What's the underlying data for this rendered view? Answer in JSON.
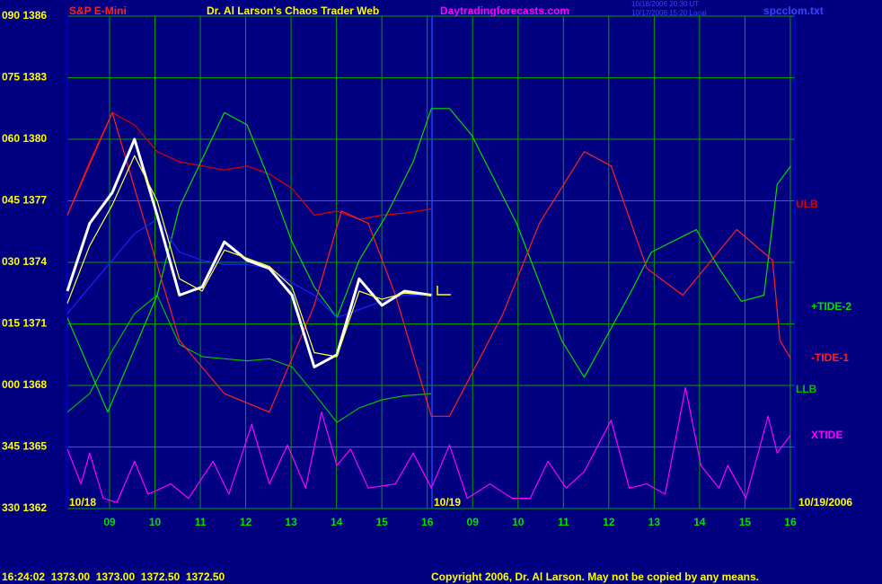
{
  "chart_data": {
    "type": "line",
    "title": "Dr. Al Larson's Chaos Trader Web",
    "subtitle": "S&P E-Mini",
    "source": "Daytradingforecasts.com",
    "file": "spcclom.txt",
    "timestamps": [
      "10/18/2006 20:30 UT",
      "10/17/2006 15:20 Local"
    ],
    "annotations": [
      "10/18",
      "10/19",
      "10/19/2006"
    ],
    "status": "16:24:02  1373.00  1373.00  1372.50  1372.50",
    "copyright": "Copyright 2006, Dr. Al Larson. May not be copied by any means.",
    "xlim": [
      0.07,
      16.1
    ],
    "ylim": [
      1362,
      1386
    ],
    "xticks": [
      {
        "value": 1,
        "label": "09"
      },
      {
        "value": 2,
        "label": "10"
      },
      {
        "value": 3,
        "label": "11"
      },
      {
        "value": 4,
        "label": "12"
      },
      {
        "value": 5,
        "label": "13"
      },
      {
        "value": 6,
        "label": "14"
      },
      {
        "value": 7,
        "label": "15"
      },
      {
        "value": 8,
        "label": "16"
      },
      {
        "value": 9,
        "label": "09"
      },
      {
        "value": 10,
        "label": "10"
      },
      {
        "value": 11,
        "label": "11"
      },
      {
        "value": 12,
        "label": "12"
      },
      {
        "value": 13,
        "label": "13"
      },
      {
        "value": 14,
        "label": "14"
      },
      {
        "value": 15,
        "label": "15"
      },
      {
        "value": 16,
        "label": "16"
      }
    ],
    "yticks": [
      {
        "value": 1386,
        "label": "090 1386"
      },
      {
        "value": 1383,
        "label": "075 1383"
      },
      {
        "value": 1380,
        "label": "060 1380"
      },
      {
        "value": 1377,
        "label": "045 1377"
      },
      {
        "value": 1374,
        "label": "030 1374"
      },
      {
        "value": 1371,
        "label": "015 1371"
      },
      {
        "value": 1368,
        "label": "000 1368"
      },
      {
        "value": 1365,
        "label": "345 1365"
      },
      {
        "value": 1362,
        "label": "330 1362"
      }
    ],
    "grid": true,
    "series": [
      {
        "name": "ULB",
        "color": "#e00000",
        "x": [
          0.07,
          0.56,
          1.06,
          1.55,
          2.05,
          2.54,
          3.04,
          3.53,
          4.03,
          4.52,
          5.02,
          5.51,
          6.01,
          6.5,
          7.0,
          7.5,
          8.09
        ],
        "values": [
          1376.3,
          1378.9,
          1381.3,
          1380.7,
          1379.4,
          1378.9,
          1378.7,
          1378.5,
          1378.7,
          1378.3,
          1377.6,
          1376.3,
          1376.5,
          1376.1,
          1376.3,
          1376.4,
          1376.6
        ]
      },
      {
        "name": "LLB",
        "color": "#00c000",
        "x": [
          0.07,
          0.56,
          1.06,
          1.55,
          2.05,
          2.54,
          3.04,
          3.53,
          4.03,
          4.52,
          5.02,
          5.51,
          6.01,
          6.5,
          7.0,
          7.5,
          8.09
        ],
        "values": [
          1366.7,
          1367.6,
          1369.7,
          1371.5,
          1372.4,
          1370.0,
          1369.4,
          1369.3,
          1369.2,
          1369.3,
          1368.9,
          1367.6,
          1366.2,
          1366.9,
          1367.3,
          1367.5,
          1367.6
        ]
      },
      {
        "name": "+TIDE-2",
        "color": "#00e000",
        "x": [
          0.07,
          0.96,
          2.05,
          2.54,
          3.53,
          4.03,
          4.52,
          5.02,
          5.51,
          6.01,
          6.5,
          7.1,
          7.69,
          8.09,
          8.49,
          8.98,
          9.97,
          10.96,
          11.46,
          12.45,
          12.94,
          13.93,
          14.43,
          14.92,
          15.42,
          15.71,
          16.01
        ],
        "values": [
          1371.3,
          1366.7,
          1372.4,
          1376.7,
          1381.3,
          1380.7,
          1378.0,
          1375.0,
          1372.8,
          1371.3,
          1374.1,
          1376.3,
          1378.9,
          1381.5,
          1381.5,
          1380.2,
          1375.9,
          1370.2,
          1368.4,
          1372.4,
          1374.5,
          1375.6,
          1373.7,
          1372.1,
          1372.4,
          1377.8,
          1378.7
        ]
      },
      {
        "name": "-TIDE-1",
        "color": "#ff2020",
        "x": [
          0.07,
          1.06,
          2.54,
          3.53,
          4.52,
          5.51,
          6.11,
          6.7,
          7.3,
          8.09,
          8.49,
          9.67,
          10.47,
          11.46,
          12.05,
          12.84,
          13.63,
          14.82,
          15.61,
          15.77,
          16.01
        ],
        "values": [
          1376.3,
          1381.3,
          1370.2,
          1367.6,
          1366.7,
          1371.9,
          1376.5,
          1375.9,
          1372.4,
          1366.5,
          1366.5,
          1371.5,
          1375.9,
          1379.4,
          1378.7,
          1373.7,
          1372.4,
          1375.6,
          1374.1,
          1370.2,
          1369.3
        ]
      },
      {
        "name": "XTIDE",
        "color": "#ff00ff",
        "x": [
          0.07,
          0.37,
          0.56,
          0.86,
          1.16,
          1.55,
          1.85,
          2.35,
          2.74,
          3.28,
          3.63,
          4.13,
          4.52,
          4.92,
          5.32,
          5.67,
          6.01,
          6.31,
          6.7,
          7.3,
          7.69,
          8.09,
          8.49,
          8.88,
          9.38,
          9.87,
          10.27,
          10.66,
          11.06,
          11.46,
          12.05,
          12.45,
          12.84,
          13.24,
          13.69,
          14.03,
          14.43,
          14.62,
          15.02,
          15.51,
          15.71,
          16.01
        ],
        "values": [
          1364.9,
          1363.2,
          1364.7,
          1362.5,
          1362.3,
          1364.3,
          1362.7,
          1363.2,
          1362.5,
          1364.3,
          1362.7,
          1366.1,
          1363.2,
          1365.1,
          1363.0,
          1366.7,
          1364.1,
          1364.9,
          1363.0,
          1363.2,
          1364.7,
          1363.0,
          1365.1,
          1362.5,
          1363.2,
          1362.5,
          1362.5,
          1364.3,
          1363.0,
          1363.8,
          1366.3,
          1363.0,
          1363.2,
          1362.7,
          1367.9,
          1364.1,
          1363.0,
          1364.1,
          1362.5,
          1366.5,
          1364.7,
          1365.6
        ]
      },
      {
        "color": "#2020ff",
        "x": [
          0.07,
          0.56,
          1.06,
          1.55,
          2.05,
          2.54,
          3.04,
          3.53,
          4.03,
          4.52,
          5.02,
          5.51,
          6.01,
          6.5,
          7.0,
          7.5,
          8.09
        ],
        "values": [
          1371.5,
          1372.8,
          1374.1,
          1375.4,
          1376.1,
          1374.5,
          1374.1,
          1373.9,
          1373.9,
          1373.7,
          1373.0,
          1372.4,
          1371.3,
          1371.7,
          1372.1,
          1372.4,
          1372.4
        ]
      },
      {
        "color": "#ffffff",
        "x": [
          0.07,
          0.56,
          1.06,
          1.55,
          2.05,
          2.54,
          3.04,
          3.53,
          4.03,
          4.52,
          5.02,
          5.51,
          6.01,
          6.5,
          7.0,
          7.5,
          8.09
        ],
        "values": [
          1372.6,
          1375.9,
          1377.4,
          1380.0,
          1376.3,
          1372.4,
          1372.8,
          1375.0,
          1374.1,
          1373.7,
          1372.4,
          1368.9,
          1369.5,
          1373.2,
          1371.9,
          1372.6,
          1372.4
        ]
      },
      {
        "color": "#ffff40",
        "x": [
          0.07,
          0.56,
          1.06,
          1.55,
          2.05,
          2.54,
          3.04,
          3.53,
          4.03,
          4.52,
          5.02,
          5.51,
          6.01,
          6.5,
          7.0,
          7.5,
          8.09
        ],
        "values": [
          1372.0,
          1374.8,
          1376.8,
          1379.2,
          1377.0,
          1373.2,
          1372.6,
          1374.6,
          1374.2,
          1373.8,
          1372.8,
          1369.6,
          1369.4,
          1372.6,
          1372.2,
          1372.5,
          1372.4
        ]
      }
    ]
  }
}
